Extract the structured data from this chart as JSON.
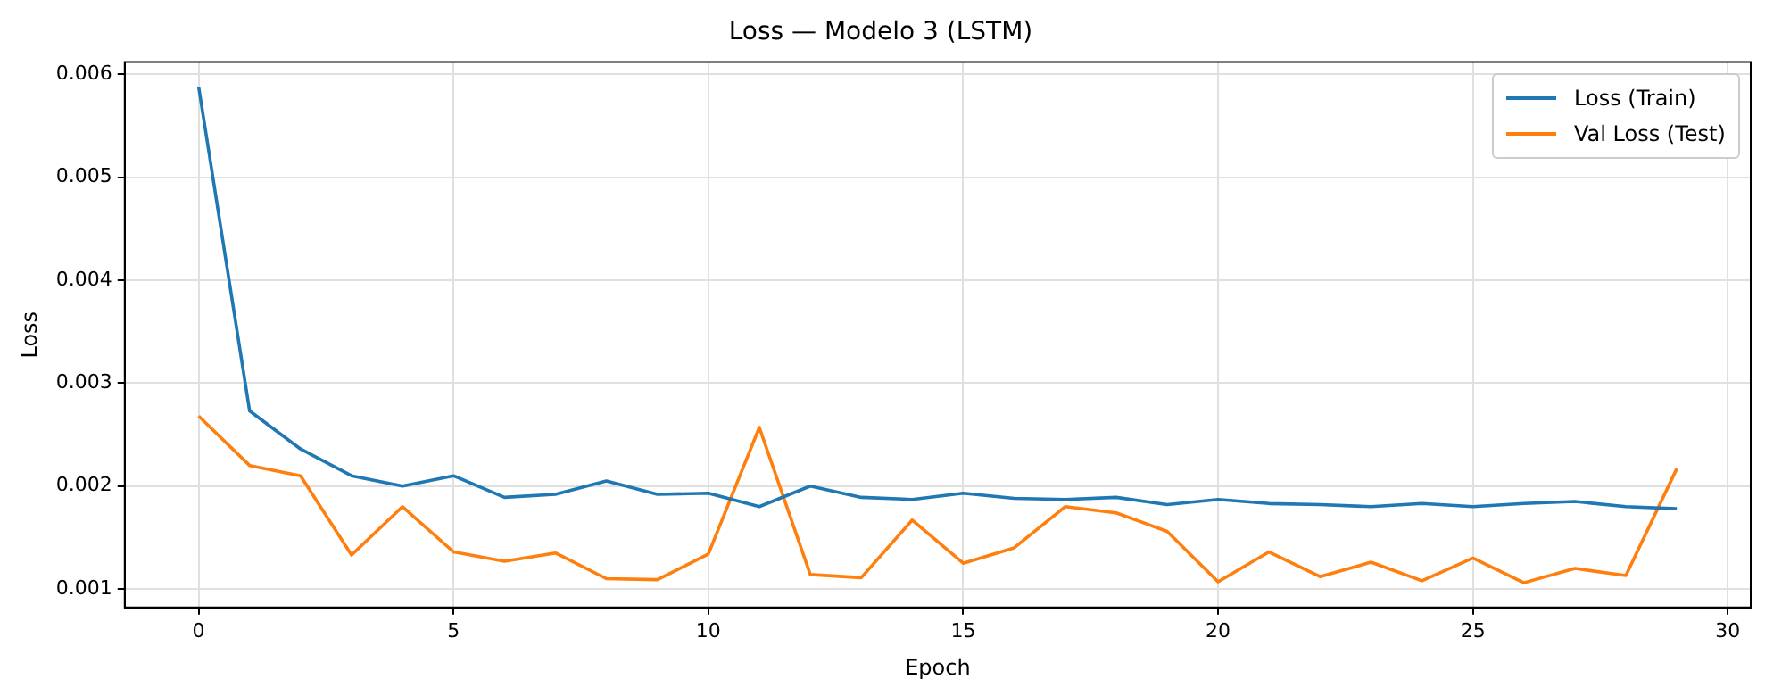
{
  "chart_data": {
    "type": "line",
    "title": "Loss — Modelo 3 (LSTM)",
    "xlabel": "Epoch",
    "ylabel": "Loss",
    "x": [
      0,
      1,
      2,
      3,
      4,
      5,
      6,
      7,
      8,
      9,
      10,
      11,
      12,
      13,
      14,
      15,
      16,
      17,
      18,
      19,
      20,
      21,
      22,
      23,
      24,
      25,
      26,
      27,
      28,
      29
    ],
    "series": [
      {
        "name": "Loss (Train)",
        "color": "#1f77b4",
        "values": [
          0.00588,
          0.00273,
          0.00236,
          0.0021,
          0.002,
          0.0021,
          0.00189,
          0.00192,
          0.00205,
          0.00192,
          0.00193,
          0.0018,
          0.002,
          0.00189,
          0.00187,
          0.00193,
          0.00188,
          0.00187,
          0.00189,
          0.00182,
          0.00187,
          0.00183,
          0.00182,
          0.0018,
          0.00183,
          0.0018,
          0.00183,
          0.00185,
          0.0018,
          0.00178
        ]
      },
      {
        "name": "Val Loss (Test)",
        "color": "#ff7f0e",
        "values": [
          0.00268,
          0.0022,
          0.0021,
          0.00133,
          0.0018,
          0.00136,
          0.00127,
          0.00135,
          0.0011,
          0.00109,
          0.00134,
          0.00257,
          0.00114,
          0.00111,
          0.00167,
          0.00125,
          0.0014,
          0.0018,
          0.00174,
          0.00156,
          0.00107,
          0.00136,
          0.00112,
          0.00126,
          0.00108,
          0.0013,
          0.00106,
          0.0012,
          0.00113,
          0.00217
        ]
      }
    ],
    "xlim": [
      -1.45,
      30.45
    ],
    "xticks": [
      0,
      5,
      10,
      15,
      20,
      25,
      30
    ],
    "ylim": [
      0.00082,
      0.00612
    ],
    "yticks": [
      0.001,
      0.002,
      0.003,
      0.004,
      0.005,
      0.006
    ],
    "grid": true,
    "legend": "top right",
    "marker": "none",
    "line_style": "solid"
  }
}
